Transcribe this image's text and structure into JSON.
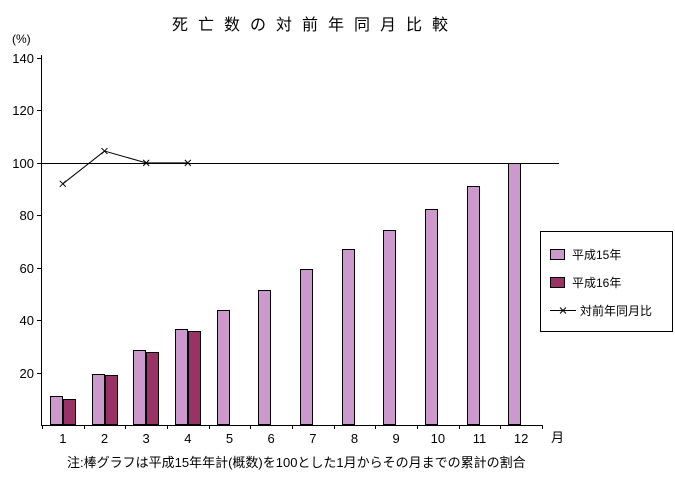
{
  "title": "死亡数の対前年同月比較",
  "y_axis_unit": "(%)",
  "x_axis_unit": "月",
  "note": "注:棒グラフは平成15年年計(概数)を100とした1月からその月までの累計の割合",
  "legend": {
    "heisei15": "平成15年",
    "heisei16": "平成16年",
    "ratio": "対前年同月比"
  },
  "colors": {
    "heisei15_fill": "#cc99cc",
    "heisei16_fill": "#993366",
    "line": "#000000",
    "axis": "#000000",
    "background": "#ffffff"
  },
  "chart_data": {
    "type": "bar",
    "title": "死亡数の対前年同月比較",
    "xlabel": "月",
    "ylabel": "(%)",
    "categories": [
      1,
      2,
      3,
      4,
      5,
      6,
      7,
      8,
      9,
      10,
      11,
      12
    ],
    "series": [
      {
        "name": "平成15年",
        "type": "bar",
        "values": [
          11,
          19.5,
          28.5,
          36.5,
          44,
          51.5,
          59.5,
          67,
          74.5,
          82.5,
          91,
          100
        ]
      },
      {
        "name": "平成16年",
        "type": "bar",
        "values": [
          10,
          19,
          28,
          36,
          null,
          null,
          null,
          null,
          null,
          null,
          null,
          null
        ]
      },
      {
        "name": "対前年同月比",
        "type": "line",
        "marker": "x",
        "values": [
          92,
          104.5,
          100,
          100,
          null,
          null,
          null,
          null,
          null,
          null,
          null,
          null
        ]
      }
    ],
    "ylim": [
      0,
      140
    ],
    "yticks": [
      20,
      40,
      60,
      80,
      100,
      120,
      140
    ],
    "reference_line": 100,
    "grid": false,
    "legend_position": "right"
  }
}
